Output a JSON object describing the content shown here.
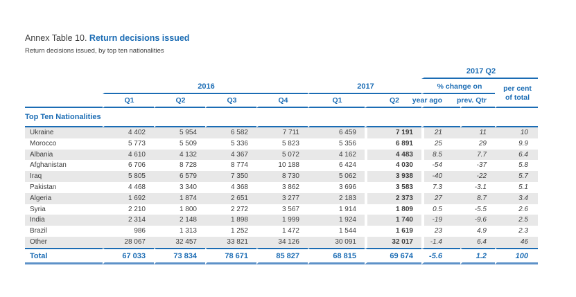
{
  "page": {
    "title_prefix": "Annex Table 10.",
    "title": "Return decisions issued",
    "subtitle": "Return decisions issued, by top ten nationalities"
  },
  "table": {
    "colors": {
      "header_blue": "#1b6cb4",
      "stripe_gray": "#e8e8e8",
      "body_text": "#3d3d3d",
      "bottom_rule_blue": "#5d91c8"
    },
    "headers": {
      "group_2016": "2016",
      "group_2017": "2017",
      "group_2017_q2": "2017 Q2",
      "pct_change_on": "% change on",
      "per_cent_line1": "per cent",
      "per_cent_line2": "of total",
      "quarters_2016": [
        "Q1",
        "Q2",
        "Q3",
        "Q4"
      ],
      "quarters_2017": [
        "Q1",
        "Q2"
      ],
      "year_ago": "year ago",
      "prev_qtr": "prev. Qtr",
      "section": "Top Ten Nationalities"
    },
    "rows": [
      {
        "name": "Ukraine",
        "values": [
          "4 402",
          "5 954",
          "6 582",
          "7 711",
          "6 459",
          "7 191",
          "21",
          "11",
          "10"
        ]
      },
      {
        "name": "Morocco",
        "values": [
          "5 773",
          "5 509",
          "5 336",
          "5 823",
          "5 356",
          "6 891",
          "25",
          "29",
          "9.9"
        ]
      },
      {
        "name": "Albania",
        "values": [
          "4 610",
          "4 132",
          "4 367",
          "5 072",
          "4 162",
          "4 483",
          "8.5",
          "7.7",
          "6.4"
        ]
      },
      {
        "name": "Afghanistan",
        "values": [
          "6 706",
          "8 728",
          "8 774",
          "10 188",
          "6 424",
          "4 030",
          "-54",
          "-37",
          "5.8"
        ]
      },
      {
        "name": "Iraq",
        "values": [
          "5 805",
          "6 579",
          "7 350",
          "8 730",
          "5 062",
          "3 938",
          "-40",
          "-22",
          "5.7"
        ]
      },
      {
        "name": "Pakistan",
        "values": [
          "4 468",
          "3 340",
          "4 368",
          "3 862",
          "3 696",
          "3 583",
          "7.3",
          "-3.1",
          "5.1"
        ]
      },
      {
        "name": "Algeria",
        "values": [
          "1 692",
          "1 874",
          "2 651",
          "3 277",
          "2 183",
          "2 373",
          "27",
          "8.7",
          "3.4"
        ]
      },
      {
        "name": "Syria",
        "values": [
          "2 210",
          "1 800",
          "2 272",
          "3 567",
          "1 914",
          "1 809",
          "0.5",
          "-5.5",
          "2.6"
        ]
      },
      {
        "name": "India",
        "values": [
          "2 314",
          "2 148",
          "1 898",
          "1 999",
          "1 924",
          "1 740",
          "-19",
          "-9.6",
          "2.5"
        ]
      },
      {
        "name": "Brazil",
        "values": [
          "986",
          "1 313",
          "1 252",
          "1 472",
          "1 544",
          "1 619",
          "23",
          "4.9",
          "2.3"
        ]
      },
      {
        "name": "Other",
        "values": [
          "28 067",
          "32 457",
          "33 821",
          "34 126",
          "30 091",
          "32 017",
          "-1.4",
          "6.4",
          "46"
        ]
      }
    ],
    "total": {
      "label": "Total",
      "values": [
        "67 033",
        "73 834",
        "78 671",
        "85 827",
        "68 815",
        "69 674",
        "-5.6",
        "1.2",
        "100"
      ]
    }
  }
}
